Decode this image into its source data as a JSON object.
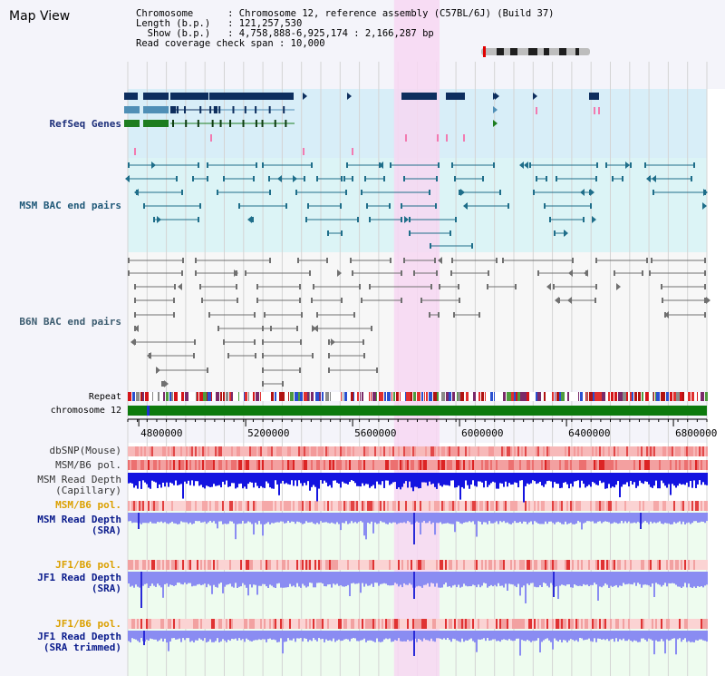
{
  "title": "Map View",
  "info": {
    "line1": "Chromosome      : Chromosome 12, reference assembly (C57BL/6J) (Build 37)",
    "line2": "Length (b.p.)   : 121,257,530",
    "line3": "  Show (b.p.)   : 4,758,888-6,925,174 : 2,166,287 bp",
    "line4": "Read coverage check span : 10,000"
  },
  "tracks": {
    "refseq": "RefSeq Genes",
    "msm_bac": "MSM BAC end pairs",
    "b6n_bac": "B6N BAC end pairs",
    "repeat": "Repeat",
    "chromosome": "chromosome 12",
    "dbsnp": "dbSNP(Mouse)",
    "msm_b6_pol": "MSM/B6 pol.",
    "msm_depth_cap_1": "MSM Read Depth",
    "msm_depth_cap_2": "(Capillary)",
    "msm_b6_pol_2": "MSM/B6 pol.",
    "msm_depth_sra_1": "MSM Read Depth",
    "msm_depth_sra_2": "(SRA)",
    "jf1_b6_pol": "JF1/B6 pol.",
    "jf1_depth_sra_1": "JF1 Read Depth",
    "jf1_depth_sra_2": "(SRA)",
    "jf1_b6_pol_2": "JF1/B6 pol.",
    "jf1_depth_trim_1": "JF1 Read Depth",
    "jf1_depth_trim_2": "(SRA trimmed)"
  },
  "axis": {
    "ticks": [
      {
        "label": "4800000",
        "value": 4800000
      },
      {
        "label": "5200000",
        "value": 5200000
      },
      {
        "label": "5600000",
        "value": 5600000
      },
      {
        "label": "6000000",
        "value": 6000000
      },
      {
        "label": "6400000",
        "value": 6400000
      },
      {
        "label": "6800000",
        "value": 6800000
      }
    ],
    "view_start": 4758888,
    "view_end": 6925174
  },
  "highlight": {
    "start": 5755000,
    "end": 5925000
  },
  "colors": {
    "highlight": "#f7d7f2",
    "refseq_bg": "#d8eef8",
    "msm_bg": "#dcf4f6",
    "gene_dark": "#0d2e5e",
    "gene_mid": "#4f8fb6",
    "gene_green": "#1d7d20",
    "msm_pair": "#1f6e8a",
    "b6n_pair": "#707070",
    "chrom_bar": "#0d7a0d",
    "label_dark_blue": "#0a1b8c",
    "label_orange": "#dba000",
    "label_refseq": "#1d2f7a",
    "label_bac": "#1f5878"
  }
}
